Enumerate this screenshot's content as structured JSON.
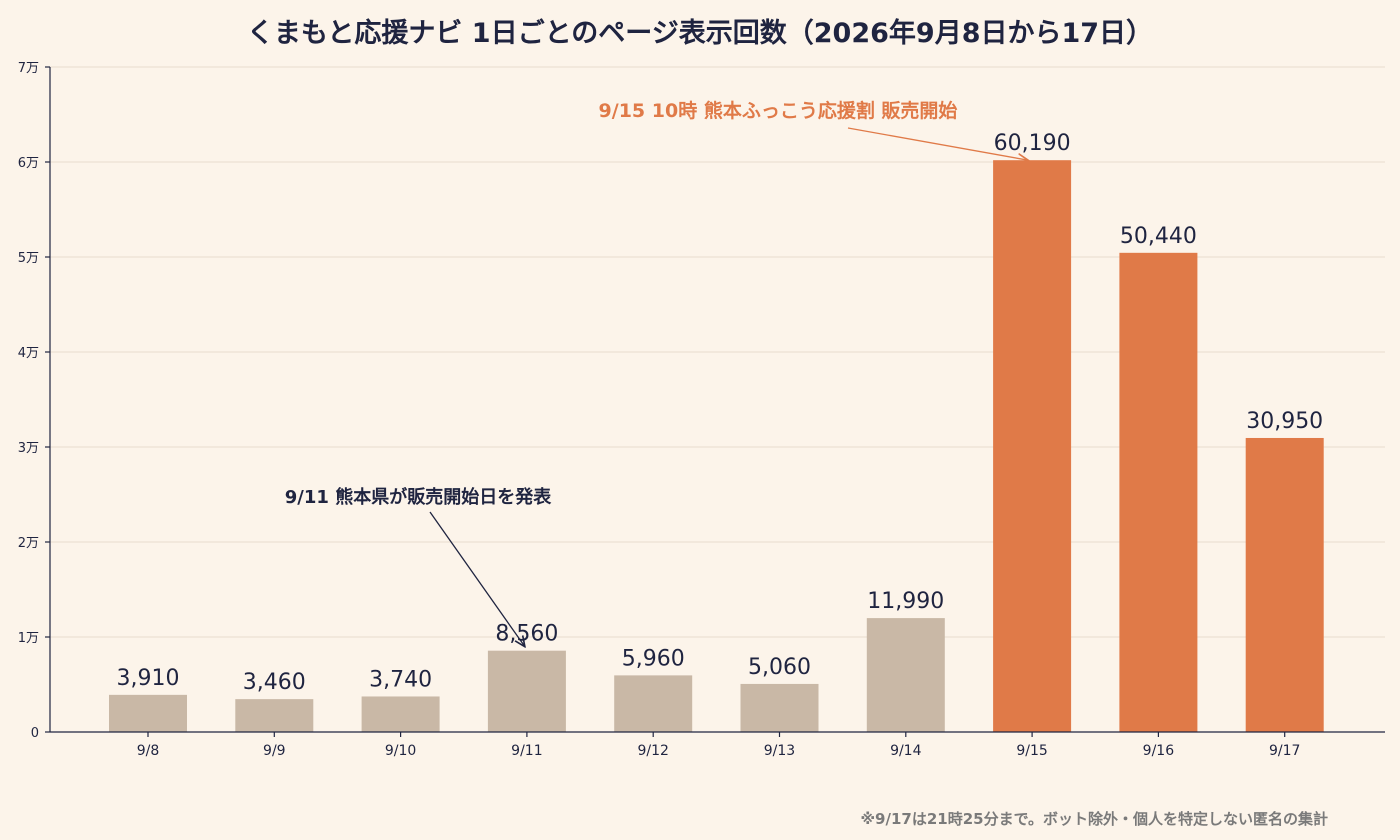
{
  "chart_data": {
    "type": "bar",
    "title": "くまもと応援ナビ 1日ごとのページ表示回数（2026年9月8日から17日）",
    "categories": [
      "9/8",
      "9/9",
      "9/10",
      "9/11",
      "9/12",
      "9/13",
      "9/14",
      "9/15",
      "9/16",
      "9/17"
    ],
    "values": [
      3910,
      3460,
      3740,
      8560,
      5960,
      5060,
      11990,
      60190,
      50440,
      30950
    ],
    "value_labels": [
      "3,910",
      "3,460",
      "3,740",
      "8,560",
      "5,960",
      "5,060",
      "11,990",
      "60,190",
      "50,440",
      "30,950"
    ],
    "bar_colors": [
      "#c9b8a6",
      "#c9b8a6",
      "#c9b8a6",
      "#c9b8a6",
      "#c9b8a6",
      "#c9b8a6",
      "#c9b8a6",
      "#e07a48",
      "#e07a48",
      "#e07a48"
    ],
    "ylim": [
      0,
      70000
    ],
    "yticks": [
      0,
      10000,
      20000,
      30000,
      40000,
      50000,
      60000,
      70000
    ],
    "ytick_labels": [
      "0",
      "1万",
      "2万",
      "3万",
      "4万",
      "5万",
      "6万",
      "7万"
    ],
    "xlabel": "",
    "ylabel": "",
    "grid": true,
    "annotations": [
      {
        "text": "9/11 熊本県が販売開始日を発表",
        "target": "9/11",
        "color": "#1f2440"
      },
      {
        "text": "9/15 10時 熊本ふっこう応援割 販売開始",
        "target": "9/15",
        "color": "#e07a48"
      }
    ],
    "footnote": "※9/17は21時25分まで。ボット除外・個人を特定しない匿名の集計"
  },
  "colors": {
    "background": "#fcf4ea",
    "bar_muted": "#c9b8a6",
    "bar_accent": "#e07a48",
    "text": "#1f2440"
  }
}
